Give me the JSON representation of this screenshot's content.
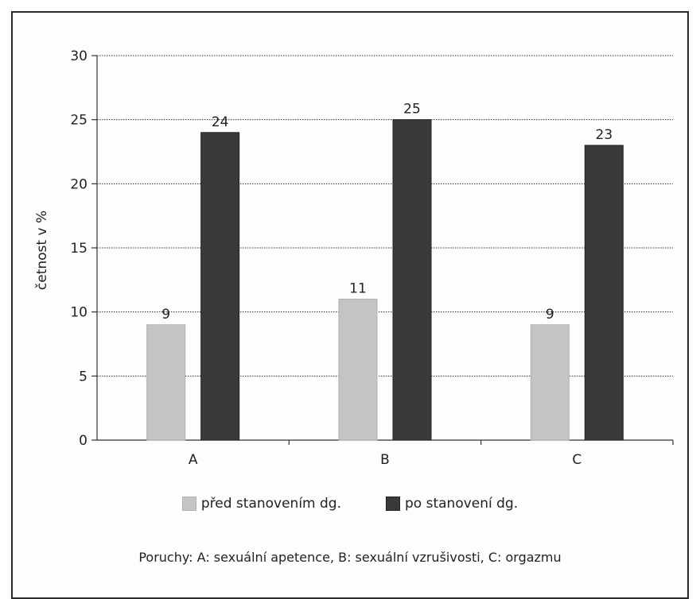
{
  "chart_data": {
    "type": "bar",
    "categories": [
      "A",
      "B",
      "C"
    ],
    "series": [
      {
        "name": "před stanovením dg.",
        "values": [
          9,
          11,
          9
        ],
        "color": "#c4c4c4"
      },
      {
        "name": "po stanovení dg.",
        "values": [
          24,
          25,
          23
        ],
        "color": "#3a3a3a"
      }
    ],
    "title": "",
    "xlabel": "",
    "ylabel": "četnost v %",
    "ylim": [
      0,
      30
    ],
    "yticks": [
      "0",
      "5",
      "10",
      "15",
      "20",
      "25",
      "30"
    ],
    "grid": true,
    "legend_position": "bottom",
    "caption": "Poruchy: A: sexuální apetence, B: sexuální vzrušivosti, C: orgazmu"
  }
}
